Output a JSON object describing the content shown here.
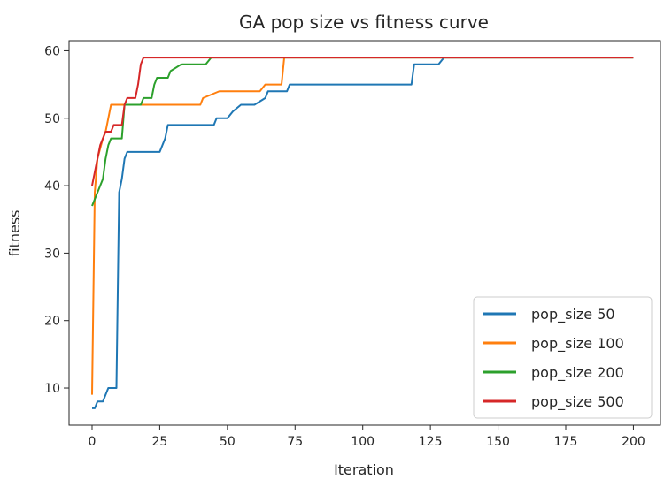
{
  "chart_data": {
    "type": "line",
    "title": "GA pop size vs fitness curve",
    "xlabel": "Iteration",
    "ylabel": "fitness",
    "xlim": [
      -8.5,
      210
    ],
    "ylim": [
      4.5,
      61.5
    ],
    "xticks": [
      0,
      25,
      50,
      75,
      100,
      125,
      150,
      175,
      200
    ],
    "yticks": [
      10,
      20,
      30,
      40,
      50,
      60
    ],
    "grid": false,
    "legend_position": "lower right",
    "series": [
      {
        "name": "pop_size 50",
        "color": "#1f77b4",
        "points": [
          [
            0,
            7
          ],
          [
            1,
            7
          ],
          [
            2,
            8
          ],
          [
            4,
            8
          ],
          [
            5,
            9
          ],
          [
            6,
            10
          ],
          [
            8,
            10
          ],
          [
            9,
            10
          ],
          [
            10,
            39
          ],
          [
            11,
            41
          ],
          [
            12,
            44
          ],
          [
            13,
            45
          ],
          [
            15,
            45
          ],
          [
            25,
            45
          ],
          [
            26,
            46
          ],
          [
            27,
            47
          ],
          [
            28,
            49
          ],
          [
            35,
            49
          ],
          [
            45,
            49
          ],
          [
            46,
            50
          ],
          [
            50,
            50
          ],
          [
            52,
            51
          ],
          [
            55,
            52
          ],
          [
            60,
            52
          ],
          [
            64,
            53
          ],
          [
            65,
            54
          ],
          [
            70,
            54
          ],
          [
            72,
            54
          ],
          [
            73,
            55
          ],
          [
            90,
            55
          ],
          [
            118,
            55
          ],
          [
            119,
            58
          ],
          [
            128,
            58
          ],
          [
            130,
            59
          ],
          [
            200,
            59
          ]
        ]
      },
      {
        "name": "pop_size 100",
        "color": "#ff7f0e",
        "points": [
          [
            0,
            9
          ],
          [
            1,
            39
          ],
          [
            2,
            44
          ],
          [
            4,
            47
          ],
          [
            5,
            48
          ],
          [
            6,
            50
          ],
          [
            7,
            52
          ],
          [
            12,
            52
          ],
          [
            13,
            52
          ],
          [
            40,
            52
          ],
          [
            41,
            53
          ],
          [
            47,
            54
          ],
          [
            62,
            54
          ],
          [
            64,
            55
          ],
          [
            70,
            55
          ],
          [
            71,
            59
          ],
          [
            200,
            59
          ]
        ]
      },
      {
        "name": "pop_size 200",
        "color": "#2ca02c",
        "points": [
          [
            0,
            37
          ],
          [
            1,
            38
          ],
          [
            2,
            39
          ],
          [
            3,
            40
          ],
          [
            4,
            41
          ],
          [
            5,
            44
          ],
          [
            6,
            46
          ],
          [
            7,
            47
          ],
          [
            11,
            47
          ],
          [
            12,
            52
          ],
          [
            18,
            52
          ],
          [
            19,
            53
          ],
          [
            22,
            53
          ],
          [
            23,
            55
          ],
          [
            24,
            56
          ],
          [
            28,
            56
          ],
          [
            29,
            57
          ],
          [
            33,
            58
          ],
          [
            42,
            58
          ],
          [
            44,
            59
          ],
          [
            200,
            59
          ]
        ]
      },
      {
        "name": "pop_size 500",
        "color": "#d62728",
        "points": [
          [
            0,
            40
          ],
          [
            1,
            42
          ],
          [
            2,
            44
          ],
          [
            3,
            46
          ],
          [
            4,
            47
          ],
          [
            5,
            48
          ],
          [
            6,
            48
          ],
          [
            7,
            48
          ],
          [
            8,
            49
          ],
          [
            11,
            49
          ],
          [
            12,
            52
          ],
          [
            13,
            53
          ],
          [
            16,
            53
          ],
          [
            17,
            55
          ],
          [
            18,
            58
          ],
          [
            19,
            59
          ],
          [
            200,
            59
          ]
        ]
      }
    ]
  }
}
